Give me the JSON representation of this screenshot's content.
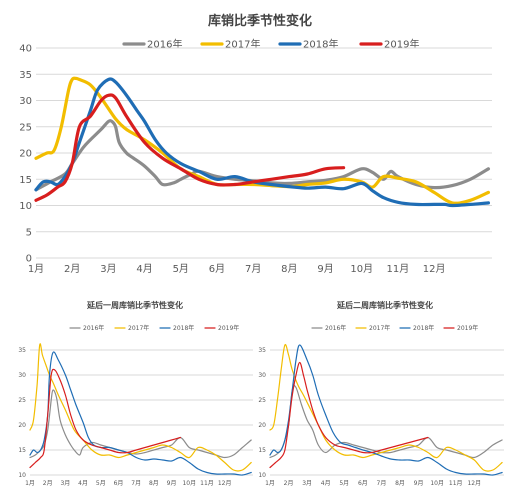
{
  "chart_data": [
    {
      "type": "line",
      "title": "库销比季节性变化",
      "months": [
        "1月",
        "2月",
        "3月",
        "4月",
        "5月",
        "6月",
        "7月",
        "8月",
        "9月",
        "10月",
        "11月",
        "12月"
      ],
      "yticks": [
        0,
        5,
        10,
        15,
        20,
        25,
        30,
        35,
        40
      ],
      "ylim": [
        0,
        40
      ],
      "grid": true,
      "legend": "top",
      "series": [
        {
          "name": "2016年",
          "color": "#8c8c8c",
          "x": [
            0,
            0.4,
            0.8,
            1,
            1.3,
            1.5,
            1.8,
            2,
            2.1,
            2.2,
            2.3,
            2.5,
            2.7,
            3,
            3.3,
            3.5,
            3.8,
            4,
            4.3,
            4.5,
            5,
            5.5,
            6,
            6.5,
            7,
            7.5,
            8,
            8.5,
            9,
            9.3,
            9.6,
            9.8,
            10,
            10.5,
            11,
            11.5,
            12,
            12.5
          ],
          "y": [
            13,
            14.5,
            16,
            18,
            21,
            22.5,
            24.5,
            26,
            26,
            25,
            22,
            20,
            19,
            17.5,
            15.5,
            14,
            14.3,
            15,
            16,
            16.5,
            15.5,
            15,
            14.7,
            14.3,
            14.2,
            14.5,
            14.8,
            15.5,
            17,
            16.3,
            15,
            16.5,
            15.5,
            14,
            13.4,
            13.8,
            15,
            17
          ]
        },
        {
          "name": "2017年",
          "color": "#f2bd00",
          "x": [
            0,
            0.3,
            0.5,
            0.7,
            0.9,
            1,
            1.1,
            1.2,
            1.5,
            1.8,
            2.2,
            2.5,
            3,
            3.5,
            4,
            4.5,
            5,
            5.5,
            6,
            6.5,
            7,
            7.5,
            8,
            8.5,
            9,
            9.3,
            9.6,
            10,
            10.5,
            11,
            11.5,
            12,
            12.5
          ],
          "y": [
            19,
            20,
            20.5,
            25,
            32,
            34,
            34.2,
            34,
            33,
            30.5,
            26.5,
            24.5,
            22.5,
            20,
            17,
            15.5,
            14,
            14,
            14,
            13.8,
            13.6,
            14,
            14.3,
            15,
            14.5,
            13.5,
            15.5,
            15.2,
            14.5,
            12.5,
            10.5,
            11,
            12.5
          ]
        },
        {
          "name": "2018年",
          "color": "#1f6db5",
          "x": [
            0,
            0.2,
            0.4,
            0.6,
            0.8,
            1,
            1.2,
            1.5,
            1.7,
            2,
            2.2,
            2.5,
            2.8,
            3,
            3.3,
            3.6,
            4,
            4.5,
            5,
            5.5,
            6,
            6.5,
            7,
            7.5,
            8,
            8.5,
            9,
            9.3,
            9.6,
            10,
            10.5,
            11,
            11.3,
            11.5,
            12,
            12.5
          ],
          "y": [
            13,
            14.5,
            14.5,
            14,
            15.5,
            18,
            22,
            28,
            32,
            34,
            33.5,
            31,
            28,
            26,
            22.5,
            20,
            18,
            16.5,
            15,
            15.5,
            14.5,
            14,
            13.6,
            13.3,
            13.5,
            13.2,
            14.2,
            12.8,
            11.5,
            10.6,
            10.2,
            10.2,
            10.2,
            10,
            10.2,
            10.5
          ]
        },
        {
          "name": "2019年",
          "color": "#d81e1e",
          "x": [
            0,
            0.3,
            0.6,
            0.8,
            1,
            1.2,
            1.5,
            1.8,
            2,
            2.2,
            2.5,
            3,
            3.5,
            4,
            4.5,
            5,
            5.5,
            6,
            6.5,
            7,
            7.5,
            8,
            8.5
          ],
          "y": [
            11,
            12,
            13.5,
            14.5,
            18,
            25,
            27,
            30,
            31,
            30.5,
            27,
            22,
            19,
            17,
            15,
            14,
            14,
            14.5,
            15,
            15.5,
            16,
            17,
            17.2
          ]
        }
      ]
    },
    {
      "type": "line",
      "title": "延后一周库销比季节性变化",
      "months": [
        "1月",
        "2月",
        "3月",
        "4月",
        "5月",
        "6月",
        "7月",
        "8月",
        "9月",
        "10月",
        "11月",
        "12月"
      ],
      "yticks": [
        10,
        15,
        20,
        25,
        30,
        35
      ],
      "ylim": [
        10,
        37
      ],
      "grid": true,
      "legend": "top",
      "series": [
        {
          "name": "2016年",
          "color": "#8c8c8c",
          "x": [
            0,
            0.3,
            0.6,
            0.8,
            1,
            1.2,
            1.3,
            1.5,
            1.7,
            2,
            2.3,
            2.5,
            2.8,
            3,
            3.5,
            4,
            4.5,
            5,
            5.5,
            6,
            6.5,
            7,
            7.5,
            8,
            8.5,
            9,
            9.5,
            10,
            10.5,
            11,
            11.5,
            12,
            12.5
          ],
          "y": [
            13.5,
            14,
            15,
            16,
            19,
            25,
            27,
            25.5,
            21,
            18,
            16,
            15,
            14,
            15.5,
            16.5,
            16,
            15.5,
            15,
            14.5,
            14.2,
            14.5,
            15,
            15.5,
            16,
            17.5,
            15.5,
            15,
            14.5,
            14,
            13.5,
            14,
            15.5,
            17
          ]
        },
        {
          "name": "2017年",
          "color": "#f2bd00",
          "x": [
            0,
            0.2,
            0.4,
            0.55,
            0.7,
            0.9,
            1.1,
            1.3,
            1.6,
            2,
            2.5,
            3,
            3.5,
            4,
            4.5,
            5,
            5.5,
            6,
            6.5,
            7,
            7.5,
            8,
            8.5,
            9,
            9.5,
            10,
            10.5,
            11,
            11.5,
            12,
            12.5
          ],
          "y": [
            19,
            21,
            28,
            36,
            34,
            32,
            30,
            28.5,
            26,
            23,
            19,
            17,
            15,
            14,
            14,
            13.5,
            14,
            14.5,
            15,
            15.5,
            16,
            15.5,
            14.5,
            13.5,
            15.5,
            15,
            14,
            12.5,
            11,
            11,
            12.5
          ]
        },
        {
          "name": "2018年",
          "color": "#1f6db5",
          "x": [
            0,
            0.2,
            0.4,
            0.6,
            0.8,
            1,
            1.1,
            1.3,
            1.6,
            2,
            2.3,
            2.6,
            3,
            3.3,
            3.6,
            4,
            4.5,
            5,
            5.5,
            6,
            6.5,
            7,
            7.5,
            8,
            8.5,
            9,
            9.5,
            10,
            10.5,
            11,
            11.5,
            12,
            12.5
          ],
          "y": [
            14,
            15,
            14.5,
            15,
            17,
            22,
            30,
            34.5,
            33,
            30,
            27,
            24,
            20.5,
            17.5,
            16,
            15.5,
            15.5,
            15,
            14.5,
            13.5,
            13,
            13.2,
            13,
            12.8,
            13.5,
            12.5,
            11.2,
            10.5,
            10.2,
            10.2,
            10.2,
            10,
            10.5
          ]
        },
        {
          "name": "2019年",
          "color": "#d81e1e",
          "x": [
            0,
            0.3,
            0.6,
            0.8,
            1,
            1.2,
            1.4,
            1.7,
            2,
            2.3,
            2.6,
            3,
            3.5,
            4,
            4.5,
            5,
            5.5,
            6,
            6.5,
            7,
            7.5,
            8,
            8.5
          ],
          "y": [
            11.5,
            12.5,
            13.5,
            15,
            22,
            30,
            31,
            29,
            26,
            22,
            19,
            17,
            16,
            15.5,
            15,
            14.5,
            14.5,
            15,
            15.5,
            16,
            16.5,
            17,
            17.5
          ]
        }
      ]
    },
    {
      "type": "line",
      "title": "延后二周库销比季节性变化",
      "months": [
        "1月",
        "2月",
        "3月",
        "4月",
        "5月",
        "6月",
        "7月",
        "8月",
        "9月",
        "10月",
        "11月",
        "12月"
      ],
      "yticks": [
        10,
        15,
        20,
        25,
        30,
        35
      ],
      "ylim": [
        10,
        37
      ],
      "grid": true,
      "legend": "top",
      "series": [
        {
          "name": "2016年",
          "color": "#8c8c8c",
          "x": [
            0,
            0.3,
            0.6,
            0.8,
            1,
            1.2,
            1.4,
            1.7,
            2,
            2.3,
            2.6,
            3,
            3.5,
            4,
            4.5,
            5,
            5.5,
            6,
            6.5,
            7,
            7.5,
            8,
            8.5,
            9,
            9.5,
            10,
            10.5,
            11,
            11.5,
            12,
            12.5
          ],
          "y": [
            13.5,
            14,
            15,
            17,
            20,
            27,
            27.5,
            24,
            21,
            19,
            16,
            14.5,
            16,
            16.5,
            16,
            15.5,
            15,
            14.5,
            14.5,
            15,
            15.5,
            16,
            17.5,
            15.5,
            15,
            14.5,
            14,
            13.5,
            14.5,
            16,
            17
          ]
        },
        {
          "name": "2017年",
          "color": "#f2bd00",
          "x": [
            0,
            0.2,
            0.4,
            0.6,
            0.8,
            1,
            1.2,
            1.5,
            1.8,
            2.2,
            2.6,
            3,
            3.5,
            4,
            4.5,
            5,
            5.5,
            6,
            6.5,
            7,
            7.5,
            8,
            8.5,
            9,
            9.5,
            10,
            10.5,
            11,
            11.5,
            12,
            12.5
          ],
          "y": [
            19,
            20,
            25,
            31,
            36,
            34,
            31,
            28,
            26,
            23,
            20,
            17,
            15,
            14,
            14,
            13.5,
            14,
            14.5,
            15,
            15.5,
            16,
            15.5,
            14.5,
            13.5,
            15.5,
            15,
            14,
            13,
            11,
            11,
            12.5
          ]
        },
        {
          "name": "2018年",
          "color": "#1f6db5",
          "x": [
            0,
            0.2,
            0.4,
            0.6,
            0.8,
            1,
            1.2,
            1.4,
            1.6,
            2,
            2.3,
            2.6,
            3,
            3.4,
            3.8,
            4.2,
            4.6,
            5,
            5.5,
            6,
            6.5,
            7,
            7.5,
            8,
            8.5,
            9,
            9.5,
            10,
            10.5,
            11,
            11.5,
            12,
            12.5
          ],
          "y": [
            14,
            15,
            14.5,
            15,
            17,
            21,
            27,
            33,
            36,
            33,
            30,
            26,
            22,
            18.5,
            16.5,
            16,
            15.5,
            15,
            14.5,
            13.8,
            13.2,
            13,
            13,
            12.8,
            13.5,
            12.5,
            11.2,
            10.5,
            10.2,
            10.2,
            10.2,
            10,
            10.5
          ]
        },
        {
          "name": "2019年",
          "color": "#d81e1e",
          "x": [
            0,
            0.3,
            0.6,
            0.8,
            1,
            1.2,
            1.4,
            1.6,
            1.8,
            2,
            2.3,
            2.6,
            3,
            3.5,
            4,
            4.5,
            5,
            5.5,
            6,
            6.5,
            7,
            7.5,
            8,
            8.5
          ],
          "y": [
            11.5,
            12.5,
            13.5,
            15,
            20,
            26,
            30,
            32.5,
            30,
            27,
            23,
            20,
            17.5,
            16,
            15.5,
            15,
            14.5,
            14.5,
            15,
            15.5,
            16,
            16.5,
            17,
            17.5
          ]
        }
      ]
    }
  ]
}
